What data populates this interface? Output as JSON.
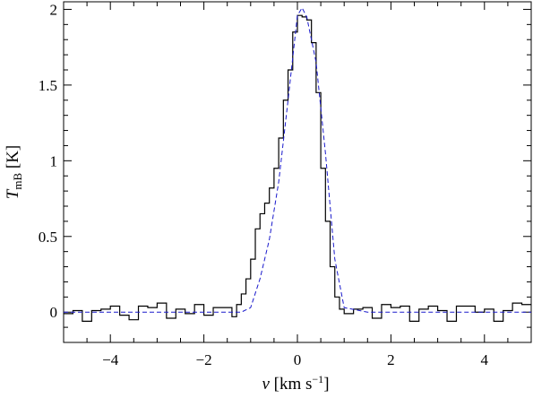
{
  "chart_data": {
    "type": "line",
    "xlabel": {
      "var": "v",
      "text": " [km s",
      "exp": "−1",
      "close": "]"
    },
    "ylabel": {
      "var": "T",
      "sub": "mB",
      "text": " [K]"
    },
    "xlim": [
      -5,
      5
    ],
    "ylim": [
      -0.2,
      2.05
    ],
    "xticks": [
      -4,
      -2,
      0,
      2,
      4
    ],
    "xtick_labels": [
      "−4",
      "−2",
      "0",
      "2",
      "4"
    ],
    "yticks": [
      0,
      0.5,
      1,
      1.5,
      2
    ],
    "ytick_labels": [
      "0",
      "0.5",
      "1",
      "1.5",
      "2"
    ],
    "series": [
      {
        "style": "solid-step",
        "color": "#000000",
        "x": [
          -5.0,
          -4.8,
          -4.6,
          -4.4,
          -4.2,
          -4.0,
          -3.8,
          -3.6,
          -3.4,
          -3.2,
          -3.0,
          -2.8,
          -2.6,
          -2.4,
          -2.2,
          -2.0,
          -1.8,
          -1.6,
          -1.4,
          -1.3,
          -1.2,
          -1.1,
          -1.0,
          -0.9,
          -0.8,
          -0.7,
          -0.6,
          -0.5,
          -0.4,
          -0.3,
          -0.2,
          -0.1,
          0.0,
          0.1,
          0.2,
          0.3,
          0.4,
          0.5,
          0.6,
          0.7,
          0.8,
          0.9,
          1.0,
          1.2,
          1.4,
          1.6,
          1.8,
          2.0,
          2.2,
          2.4,
          2.6,
          2.8,
          3.0,
          3.2,
          3.4,
          3.6,
          3.8,
          4.0,
          4.2,
          4.4,
          4.6,
          4.8,
          5.0
        ],
        "y": [
          -0.01,
          0.01,
          -0.06,
          0.01,
          0.02,
          0.04,
          -0.02,
          -0.05,
          0.04,
          0.03,
          0.06,
          -0.04,
          0.02,
          -0.01,
          0.05,
          -0.02,
          0.03,
          0.03,
          -0.03,
          0.05,
          0.12,
          0.22,
          0.35,
          0.55,
          0.65,
          0.72,
          0.82,
          0.95,
          1.15,
          1.4,
          1.6,
          1.85,
          1.96,
          1.95,
          1.93,
          1.78,
          1.45,
          0.95,
          0.6,
          0.3,
          0.1,
          0.02,
          -0.01,
          0.02,
          0.03,
          -0.04,
          0.05,
          0.03,
          0.04,
          -0.06,
          0.02,
          0.04,
          0.01,
          -0.06,
          0.04,
          0.04,
          0.0,
          0.02,
          -0.06,
          0.01,
          0.06,
          0.05,
          0.05
        ]
      },
      {
        "style": "dashed",
        "color": "#1a1acc",
        "x": [
          -5.0,
          -4.0,
          -3.0,
          -2.0,
          -1.5,
          -1.2,
          -1.0,
          -0.8,
          -0.6,
          -0.4,
          -0.2,
          0.0,
          0.1,
          0.2,
          0.4,
          0.6,
          0.8,
          1.0,
          1.5,
          2.0,
          3.0,
          4.0,
          5.0
        ],
        "y": [
          0.0,
          0.0,
          0.0,
          0.0,
          0.0,
          0.0,
          0.03,
          0.22,
          0.48,
          0.86,
          1.4,
          1.96,
          2.01,
          1.95,
          1.65,
          1.05,
          0.35,
          0.03,
          0.0,
          0.0,
          0.0,
          0.0,
          0.0
        ]
      }
    ]
  }
}
